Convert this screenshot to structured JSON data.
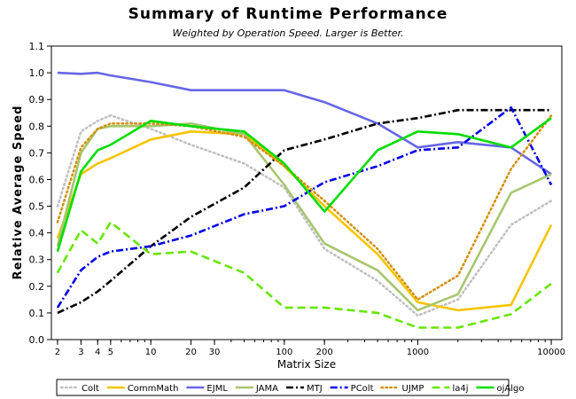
{
  "chart_data": {
    "type": "line",
    "title": "Summary of Runtime Performance",
    "subtitle": "Weighted by Operation Speed. Larger is Better.",
    "xlabel": "Matrix Size",
    "ylabel": "Relative Average Speed",
    "xscale": "log",
    "xlim": [
      1.8,
      12000
    ],
    "ylim": [
      0.0,
      1.1
    ],
    "x_ticks": [
      2,
      3,
      4,
      5,
      10,
      20,
      30,
      100,
      200,
      1000,
      10000
    ],
    "x_tick_labels": [
      "2",
      "3",
      "4",
      "5",
      "10",
      "20",
      "30",
      "100",
      "200",
      "1000",
      "10000"
    ],
    "y_ticks": [
      0.0,
      0.1,
      0.2,
      0.3,
      0.4,
      0.5,
      0.6,
      0.7,
      0.8,
      0.9,
      1.0,
      1.1
    ],
    "y_tick_labels": [
      "0.0",
      "0.1",
      "0.2",
      "0.3",
      "0.4",
      "0.5",
      "0.6",
      "0.7",
      "0.8",
      "0.9",
      "1.0",
      "1.1"
    ],
    "legend_position": "bottom",
    "grid": false,
    "series": [
      {
        "name": "Colt",
        "color": "#c0c0c0",
        "style": "dotted",
        "x": [
          2,
          3,
          4,
          5,
          10,
          20,
          50,
          100,
          200,
          500,
          1000,
          2000,
          5000,
          10000
        ],
        "y": [
          0.5,
          0.78,
          0.82,
          0.84,
          0.79,
          0.73,
          0.66,
          0.57,
          0.34,
          0.22,
          0.09,
          0.15,
          0.43,
          0.52
        ]
      },
      {
        "name": "CommMath",
        "color": "#f5c400",
        "style": "solid",
        "x": [
          2,
          3,
          4,
          5,
          10,
          20,
          50,
          100,
          200,
          500,
          1000,
          2000,
          5000,
          10000
        ],
        "y": [
          0.38,
          0.62,
          0.66,
          0.68,
          0.75,
          0.78,
          0.77,
          0.65,
          0.5,
          0.32,
          0.14,
          0.11,
          0.13,
          0.43
        ]
      },
      {
        "name": "EJML",
        "color": "#6666e6",
        "style": "solid",
        "x": [
          2,
          3,
          4,
          5,
          10,
          20,
          50,
          100,
          200,
          500,
          1000,
          2000,
          5000,
          10000
        ],
        "y": [
          1.0,
          0.996,
          1.0,
          0.99,
          0.965,
          0.935,
          0.935,
          0.935,
          0.89,
          0.81,
          0.72,
          0.74,
          0.72,
          0.62
        ]
      },
      {
        "name": "JAMA",
        "color": "#a6c66e",
        "style": "solid",
        "x": [
          2,
          3,
          4,
          5,
          10,
          20,
          50,
          100,
          200,
          500,
          1000,
          2000,
          5000,
          10000
        ],
        "y": [
          0.35,
          0.7,
          0.79,
          0.8,
          0.8,
          0.81,
          0.77,
          0.58,
          0.36,
          0.26,
          0.11,
          0.17,
          0.55,
          0.62
        ]
      },
      {
        "name": "MTJ",
        "color": "#000000",
        "style": "dashdot",
        "x": [
          2,
          3,
          4,
          5,
          10,
          20,
          50,
          100,
          200,
          500,
          1000,
          2000,
          5000,
          10000
        ],
        "y": [
          0.1,
          0.14,
          0.18,
          0.22,
          0.35,
          0.46,
          0.57,
          0.71,
          0.75,
          0.81,
          0.83,
          0.86,
          0.86,
          0.86
        ]
      },
      {
        "name": "PColt",
        "color": "#0000e6",
        "style": "dashdot",
        "x": [
          2,
          3,
          4,
          5,
          10,
          20,
          50,
          100,
          200,
          500,
          1000,
          2000,
          5000,
          10000
        ],
        "y": [
          0.12,
          0.26,
          0.31,
          0.33,
          0.35,
          0.39,
          0.47,
          0.5,
          0.59,
          0.65,
          0.71,
          0.72,
          0.87,
          0.58
        ]
      },
      {
        "name": "UJMP",
        "color": "#d4900a",
        "style": "dotted",
        "x": [
          2,
          3,
          4,
          5,
          10,
          20,
          50,
          100,
          200,
          500,
          1000,
          2000,
          5000,
          10000
        ],
        "y": [
          0.44,
          0.72,
          0.79,
          0.81,
          0.81,
          0.8,
          0.76,
          0.65,
          0.52,
          0.34,
          0.15,
          0.24,
          0.64,
          0.84
        ]
      },
      {
        "name": "la4j",
        "color": "#66e600",
        "style": "dashed",
        "x": [
          2,
          3,
          4,
          5,
          10,
          20,
          50,
          100,
          200,
          500,
          1000,
          2000,
          5000,
          10000
        ],
        "y": [
          0.25,
          0.41,
          0.36,
          0.44,
          0.32,
          0.33,
          0.25,
          0.12,
          0.12,
          0.1,
          0.045,
          0.045,
          0.095,
          0.21
        ]
      },
      {
        "name": "ojAlgo",
        "color": "#00dd00",
        "style": "solid",
        "x": [
          2,
          3,
          4,
          5,
          10,
          20,
          50,
          100,
          200,
          500,
          1000,
          2000,
          5000,
          10000
        ],
        "y": [
          0.33,
          0.63,
          0.71,
          0.73,
          0.82,
          0.8,
          0.78,
          0.66,
          0.48,
          0.71,
          0.78,
          0.77,
          0.72,
          0.83
        ]
      }
    ]
  }
}
